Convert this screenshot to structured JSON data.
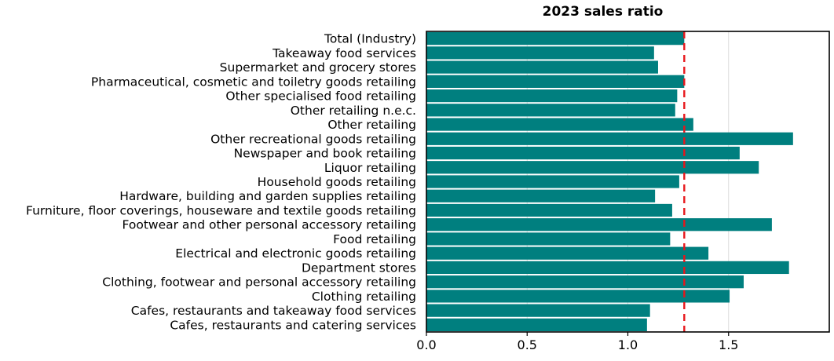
{
  "chart_data": {
    "type": "bar",
    "orientation": "horizontal",
    "title": "2023 sales ratio",
    "xlabel": "",
    "ylabel": "",
    "categories": [
      "Total (Industry)",
      "Takeaway food services",
      "Supermarket and grocery stores",
      "Pharmaceutical, cosmetic and toiletry goods retailing",
      "Other specialised food retailing",
      "Other retailing n.e.c.",
      "Other retailing",
      "Other recreational goods retailing",
      "Newspaper and book retailing",
      "Liquor retailing",
      "Household goods retailing",
      "Hardware, building and garden supplies retailing",
      "Furniture, floor coverings, houseware and textile goods retailing",
      "Footwear and other personal accessory retailing",
      "Food retailing",
      "Electrical and electronic goods retailing",
      "Department stores",
      "Clothing, footwear and personal accessory retailing",
      "Clothing retailing",
      "Cafes, restaurants and takeaway food services",
      "Cafes, restaurants and catering services"
    ],
    "values": [
      1.28,
      1.13,
      1.15,
      1.28,
      1.245,
      1.235,
      1.325,
      1.82,
      1.555,
      1.65,
      1.255,
      1.135,
      1.22,
      1.715,
      1.21,
      1.4,
      1.8,
      1.575,
      1.505,
      1.11,
      1.095
    ],
    "reference_line": {
      "value": 1.28,
      "color": "#e8161b",
      "style": "dashed"
    },
    "xlim": [
      0,
      2.0
    ],
    "xticks": [
      0.0,
      0.5,
      1.0,
      1.5
    ],
    "xtick_labels": [
      "0.0",
      "0.5",
      "1.0",
      "1.5"
    ],
    "grid": "vertical",
    "bar_color": "#007f7f"
  }
}
